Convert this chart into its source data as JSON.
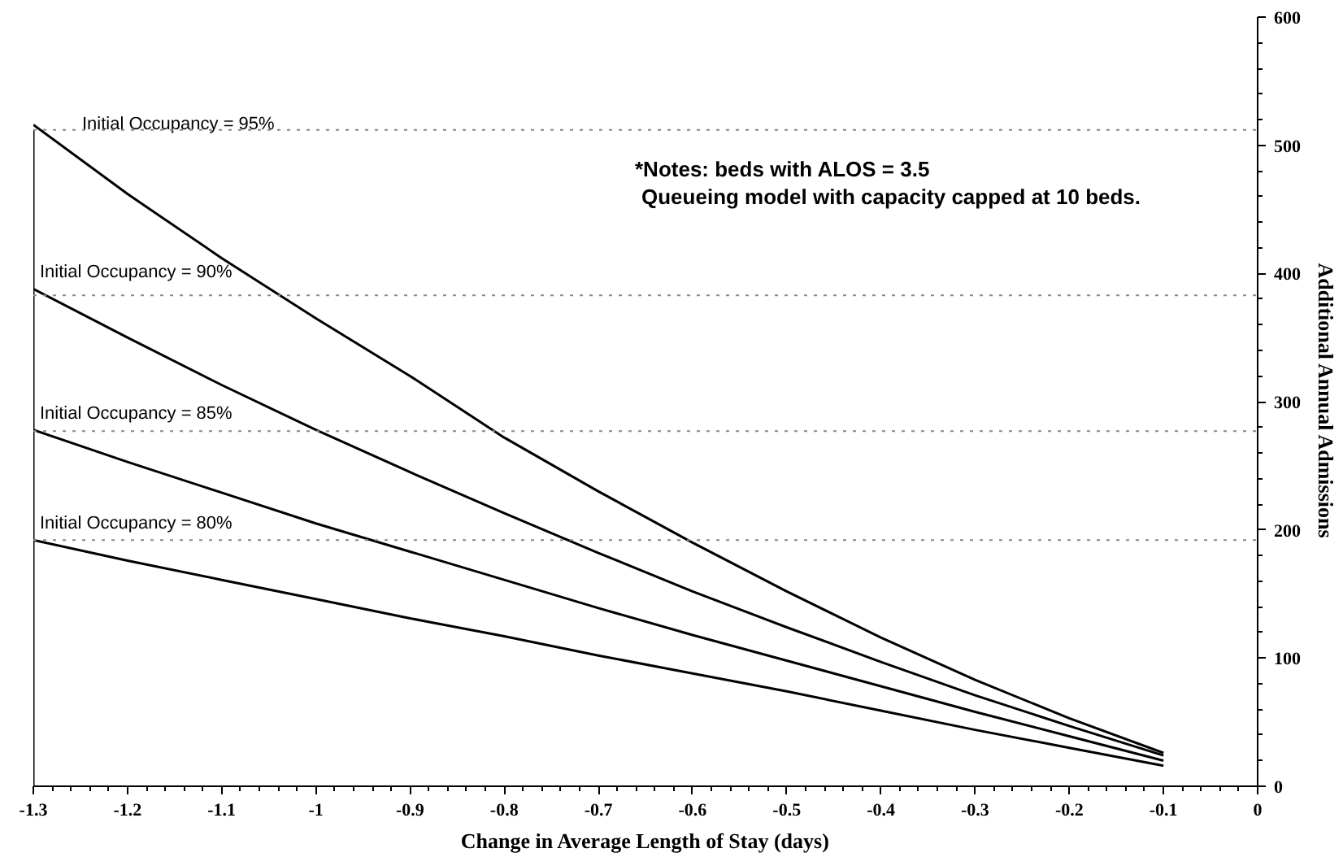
{
  "chart_data": {
    "type": "line",
    "xlabel": "Change in Average Length of Stay (days)",
    "ylabel": "Additional Annual Admissions",
    "x": [
      -1.3,
      -1.2,
      -1.1,
      -1.0,
      -0.9,
      -0.8,
      -0.7,
      -0.6,
      -0.5,
      -0.4,
      -0.3,
      -0.2,
      -0.1
    ],
    "series": [
      {
        "name": "Initial Occupancy = 95%",
        "color": "#000000",
        "values": [
          516,
          462,
          412,
          365,
          320,
          272,
          230,
          190,
          152,
          116,
          83,
          53,
          26
        ]
      },
      {
        "name": "Initial Occupancy = 90%",
        "color": "#000000",
        "values": [
          388,
          350,
          313,
          278,
          245,
          213,
          182,
          152,
          124,
          97,
          71,
          47,
          24
        ]
      },
      {
        "name": "Initial Occupancy = 85%",
        "color": "#000000",
        "values": [
          278,
          253,
          229,
          205,
          183,
          161,
          139,
          118,
          98,
          78,
          58,
          39,
          20
        ]
      },
      {
        "name": "Initial Occupancy = 80%",
        "color": "#000000",
        "values": [
          192,
          176,
          161,
          146,
          131,
          117,
          102,
          88,
          74,
          59,
          44,
          30,
          16
        ]
      }
    ],
    "annotations": [
      "*Notes:  beds with ALOS = 3.5",
      "Queueing model with capacity capped at 10 beds."
    ],
    "ref_lines": [
      {
        "axis": "y",
        "value": 512,
        "color": "#888888",
        "line_style": "dotted"
      },
      {
        "axis": "y",
        "value": 383,
        "color": "#888888",
        "line_style": "dotted"
      },
      {
        "axis": "y",
        "value": 277,
        "color": "#888888",
        "line_style": "dotted"
      },
      {
        "axis": "y",
        "value": 192,
        "color": "#888888",
        "line_style": "dotted"
      },
      {
        "axis": "x",
        "value": -1.3,
        "color": "#000000",
        "line_style": "solid"
      }
    ],
    "xlim": [
      -1.3,
      0
    ],
    "xticks": [
      -1.3,
      -1.2,
      -1.1,
      {
        "value": -1.0,
        "label": "-1"
      },
      -0.9,
      -0.8,
      -0.7,
      -0.6,
      -0.5,
      -0.4,
      -0.3,
      -0.2,
      -0.1,
      0
    ],
    "ylim": [
      0,
      600
    ],
    "yticks": [
      0,
      100,
      200,
      300,
      400,
      500,
      600
    ],
    "grid": false,
    "marker": "none",
    "line_style": "solid"
  }
}
